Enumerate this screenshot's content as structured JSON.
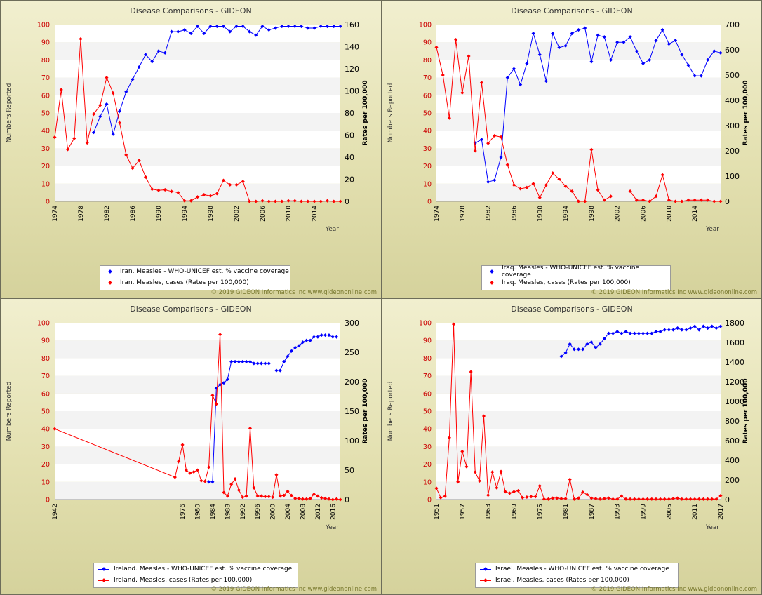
{
  "colors": {
    "series_a": "#0000ff",
    "series_b": "#ff0000"
  },
  "copyright": "© 2019 GIDEON Informatics Inc www.gideononline.com",
  "chart_data": [
    {
      "type": "line",
      "title": "Disease Comparisons - GIDEON",
      "ylabel": "Numbers Reported",
      "y2label": "Rates per 100,000",
      "xlabel": "Year",
      "xlim": [
        1974,
        2018
      ],
      "ylim": [
        0,
        100
      ],
      "y2lim": [
        0,
        160
      ],
      "yticks": [
        "0",
        "10",
        "20",
        "30",
        "40",
        "50",
        "60",
        "70",
        "80",
        "90",
        "100"
      ],
      "y2ticks": [
        "0",
        "20",
        "40",
        "60",
        "80",
        "100",
        "120",
        "140",
        "160"
      ],
      "xticks": [
        "1974",
        "1978",
        "1982",
        "1986",
        "1990",
        "1994",
        "1998",
        "2002",
        "2006",
        "2010",
        "2014"
      ],
      "grid": true,
      "legend_position": "bottom-left",
      "series": [
        {
          "name": "Iran. Measles - WHO-UNICEF est. % vaccine coverage",
          "axis": "left",
          "x": [
            1980,
            1981,
            1982,
            1983,
            1984,
            1985,
            1986,
            1987,
            1988,
            1989,
            1990,
            1991,
            1992,
            1993,
            1994,
            1995,
            1996,
            1997,
            1998,
            1999,
            2000,
            2001,
            2002,
            2003,
            2004,
            2005,
            2006,
            2007,
            2008,
            2009,
            2010,
            2011,
            2012,
            2013,
            2014,
            2015,
            2016,
            2017,
            2018
          ],
          "y": [
            39,
            48,
            55,
            38,
            51,
            62,
            69,
            76,
            83,
            79,
            85,
            84,
            96,
            96,
            97,
            95,
            99,
            95,
            99,
            99,
            99,
            96,
            99,
            99,
            96,
            94,
            99,
            97,
            98,
            99,
            99,
            99,
            99,
            98,
            98,
            99,
            99,
            99,
            99
          ]
        },
        {
          "name": "Iran. Measles, cases (Rates per 100,000)",
          "axis": "right",
          "x": [
            1974,
            1975,
            1976,
            1977,
            1978,
            1979,
            1980,
            1981,
            1982,
            1983,
            1984,
            1985,
            1986,
            1987,
            1988,
            1989,
            1990,
            1991,
            1992,
            1993,
            1994,
            1995,
            1996,
            1997,
            1998,
            1999,
            2000,
            2001,
            2002,
            2003,
            2004,
            2005,
            2006,
            2007,
            2008,
            2009,
            2010,
            2011,
            2012,
            2013,
            2014,
            2015,
            2016,
            2017,
            2018
          ],
          "y": [
            58,
            101,
            47,
            57,
            147,
            53,
            79,
            87,
            112,
            98,
            71,
            42,
            30,
            37,
            22,
            11,
            10,
            10.5,
            9,
            8,
            0.5,
            0.5,
            4,
            6,
            5,
            7,
            19,
            15,
            15,
            18,
            0,
            0,
            0.5,
            0,
            0,
            0,
            0.5,
            0.5,
            0,
            0,
            0,
            0,
            0.5,
            0,
            0
          ]
        }
      ]
    },
    {
      "type": "line",
      "title": "Disease Comparisons - GIDEON",
      "ylabel": "Numbers Reported",
      "y2label": "Rates per 100,000",
      "xlabel": "Year",
      "xlim": [
        1974,
        2018
      ],
      "ylim": [
        0,
        100
      ],
      "y2lim": [
        0,
        700
      ],
      "yticks": [
        "0",
        "10",
        "20",
        "30",
        "40",
        "50",
        "60",
        "70",
        "80",
        "90",
        "100"
      ],
      "y2ticks": [
        "0",
        "100",
        "200",
        "300",
        "400",
        "500",
        "600",
        "700"
      ],
      "xticks": [
        "1974",
        "1978",
        "1982",
        "1986",
        "1990",
        "1994",
        "1998",
        "2002",
        "2006",
        "2010",
        "2014"
      ],
      "grid": true,
      "legend_position": "bottom-left",
      "series": [
        {
          "name": "Iraq. Measles - WHO-UNICEF est. % vaccine coverage",
          "axis": "left",
          "x": [
            1980,
            1981,
            1982,
            1983,
            1984,
            1985,
            1986,
            1987,
            1988,
            1989,
            1990,
            1991,
            1992,
            1993,
            1994,
            1995,
            1996,
            1997,
            1998,
            1999,
            2000,
            2001,
            2002,
            2003,
            2004,
            2005,
            2006,
            2007,
            2008,
            2009,
            2010,
            2011,
            2012,
            2013,
            2014,
            2015,
            2016,
            2017,
            2018
          ],
          "y": [
            33,
            35,
            11,
            12,
            25,
            70,
            75,
            66,
            78,
            95,
            83,
            68,
            95,
            87,
            88,
            95,
            97,
            98,
            79,
            94,
            93,
            80,
            90,
            90,
            93,
            85,
            78,
            80,
            91,
            97,
            89,
            91,
            83,
            77,
            71,
            71,
            80,
            85,
            84
          ]
        },
        {
          "name": "Iraq. Measles, cases (Rates per 100,000)",
          "axis": "right",
          "x": [
            1974,
            1975,
            1976,
            1977,
            1978,
            1979,
            1980,
            1981,
            1982,
            1983,
            1984,
            1985,
            1986,
            1987,
            1988,
            1989,
            1990,
            1991,
            1992,
            1993,
            1994,
            1995,
            1996,
            1997,
            1998,
            1999,
            2000,
            2001,
            2004,
            2005,
            2006,
            2007,
            2008,
            2009,
            2010,
            2011,
            2012,
            2013,
            2014,
            2015,
            2016,
            2017,
            2018
          ],
          "y": [
            610,
            500,
            330,
            640,
            430,
            575,
            200,
            470,
            230,
            260,
            255,
            145,
            65,
            50,
            55,
            70,
            15,
            65,
            112,
            88,
            60,
            40,
            0,
            0,
            205,
            45,
            5,
            20,
            40,
            5,
            5,
            0,
            20,
            105,
            5,
            0,
            0,
            5,
            5,
            5,
            5,
            0,
            0
          ]
        }
      ]
    },
    {
      "type": "line",
      "title": "Disease Comparisons - GIDEON",
      "ylabel": "Numbers Reported",
      "y2label": "Rates per 100,000",
      "xlabel": "Year",
      "xlim": [
        1942,
        2018
      ],
      "ylim": [
        0,
        100
      ],
      "y2lim": [
        0,
        300
      ],
      "yticks": [
        "0",
        "10",
        "20",
        "30",
        "40",
        "50",
        "60",
        "70",
        "80",
        "90",
        "100"
      ],
      "y2ticks": [
        "0",
        "50",
        "100",
        "150",
        "200",
        "250",
        "300"
      ],
      "xticks": [
        "1942",
        "1976",
        "1980",
        "1984",
        "1988",
        "1992",
        "1996",
        "2000",
        "2004",
        "2008",
        "2012",
        "2016"
      ],
      "grid": true,
      "legend_position": "bottom-left",
      "series": [
        {
          "name": "Ireland. Measles - WHO-UNICEF est. % vaccine coverage",
          "axis": "left",
          "x": [
            1983,
            1984,
            1985,
            1986,
            1987,
            1988,
            1989,
            1990,
            1991,
            1992,
            1993,
            1994,
            1995,
            1996,
            1997,
            1998,
            1999,
            2001,
            2002,
            2003,
            2004,
            2005,
            2006,
            2007,
            2008,
            2009,
            2010,
            2011,
            2012,
            2013,
            2014,
            2015,
            2016,
            2017
          ],
          "y": [
            10,
            10,
            63,
            65,
            66,
            68,
            78,
            78,
            78,
            78,
            78,
            78,
            77,
            77,
            77,
            77,
            77,
            73,
            73,
            78,
            81,
            84,
            86,
            87,
            89,
            90,
            90,
            92,
            92,
            93,
            93,
            93,
            92,
            92
          ]
        },
        {
          "name": "Ireland. Measles, cases (Rates per 100,000)",
          "axis": "right",
          "x": [
            1942,
            1974,
            1975,
            1976,
            1977,
            1978,
            1979,
            1980,
            1981,
            1982,
            1983,
            1984,
            1985,
            1986,
            1987,
            1988,
            1989,
            1990,
            1991,
            1992,
            1993,
            1994,
            1995,
            1996,
            1997,
            1998,
            1999,
            2000,
            2001,
            2002,
            2003,
            2004,
            2005,
            2006,
            2007,
            2008,
            2009,
            2010,
            2011,
            2012,
            2013,
            2014,
            2015,
            2016,
            2017,
            2018
          ],
          "y": [
            120,
            38,
            65,
            93,
            50,
            45,
            47,
            50,
            32,
            31,
            55,
            177,
            162,
            280,
            12,
            6,
            26,
            35,
            16,
            4,
            6,
            121,
            20,
            6,
            6,
            5,
            5,
            4,
            42,
            6,
            7,
            14,
            7,
            2,
            2,
            1,
            1,
            2,
            9,
            6,
            3,
            2,
            1,
            0,
            1,
            0
          ]
        }
      ]
    },
    {
      "type": "line",
      "title": "Disease Comparisons - GIDEON",
      "ylabel": "Numbers Reported",
      "y2label": "Rates per 100,000",
      "xlabel": "Year",
      "xlim": [
        1951,
        2017
      ],
      "ylim": [
        0,
        100
      ],
      "y2lim": [
        0,
        1800
      ],
      "yticks": [
        "0",
        "10",
        "20",
        "30",
        "40",
        "50",
        "60",
        "70",
        "80",
        "90",
        "100"
      ],
      "y2ticks": [
        "0",
        "200",
        "400",
        "600",
        "800",
        "1000",
        "1200",
        "1400",
        "1600",
        "1800"
      ],
      "xticks": [
        "1951",
        "1957",
        "1963",
        "1969",
        "1975",
        "1981",
        "1987",
        "1993",
        "1999",
        "2005",
        "2011",
        "2017"
      ],
      "grid": true,
      "legend_position": "bottom-left",
      "series": [
        {
          "name": "Israel. Measles - WHO-UNICEF est. % vaccine coverage",
          "axis": "left",
          "x": [
            1980,
            1981,
            1982,
            1983,
            1984,
            1985,
            1986,
            1987,
            1988,
            1989,
            1990,
            1991,
            1992,
            1993,
            1994,
            1995,
            1996,
            1997,
            1998,
            1999,
            2000,
            2001,
            2002,
            2003,
            2004,
            2005,
            2006,
            2007,
            2008,
            2009,
            2010,
            2011,
            2012,
            2013,
            2014,
            2015,
            2016,
            2017
          ],
          "y": [
            81,
            83,
            88,
            85,
            85,
            85,
            88,
            89,
            86,
            88,
            91,
            94,
            94,
            95,
            94,
            95,
            94,
            94,
            94,
            94,
            94,
            94,
            95,
            95,
            96,
            96,
            96,
            97,
            96,
            96,
            97,
            98,
            96,
            98,
            97,
            98,
            97,
            98
          ]
        },
        {
          "name": "Israel. Measles, cases (Rates per 100,000)",
          "axis": "right",
          "x": [
            1951,
            1952,
            1953,
            1954,
            1955,
            1956,
            1957,
            1958,
            1959,
            1960,
            1961,
            1962,
            1963,
            1964,
            1965,
            1966,
            1967,
            1968,
            1969,
            1970,
            1971,
            1972,
            1973,
            1974,
            1975,
            1976,
            1977,
            1978,
            1979,
            1980,
            1981,
            1982,
            1983,
            1984,
            1985,
            1986,
            1987,
            1988,
            1989,
            1990,
            1991,
            1992,
            1993,
            1994,
            1995,
            1996,
            1997,
            1998,
            1999,
            2000,
            2001,
            2002,
            2003,
            2004,
            2005,
            2006,
            2007,
            2008,
            2009,
            2010,
            2011,
            2012,
            2013,
            2014,
            2015,
            2016,
            2017
          ],
          "y": [
            115,
            20,
            35,
            630,
            1785,
            180,
            490,
            335,
            1300,
            280,
            190,
            850,
            45,
            280,
            120,
            285,
            80,
            65,
            80,
            90,
            20,
            25,
            30,
            30,
            140,
            5,
            5,
            15,
            15,
            10,
            10,
            205,
            5,
            15,
            75,
            50,
            15,
            10,
            5,
            10,
            15,
            5,
            5,
            35,
            5,
            5,
            5,
            5,
            5,
            5,
            5,
            5,
            5,
            5,
            5,
            10,
            15,
            5,
            5,
            5,
            5,
            5,
            5,
            5,
            5,
            5,
            40
          ]
        }
      ]
    }
  ]
}
